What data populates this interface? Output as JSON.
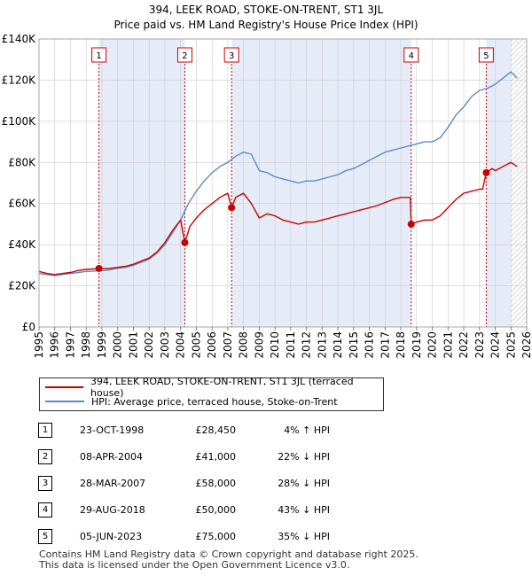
{
  "chart_data": {
    "type": "line",
    "title": "394, LEEK ROAD, STOKE-ON-TRENT, ST1 3JL",
    "subtitle": "Price paid vs. HM Land Registry's House Price Index (HPI)",
    "xlim": [
      1995,
      2026
    ],
    "ylim": [
      0,
      140000
    ],
    "x_ticks": [
      1995,
      1996,
      1997,
      1998,
      1999,
      2000,
      2001,
      2002,
      2003,
      2004,
      2005,
      2006,
      2007,
      2008,
      2009,
      2010,
      2011,
      2012,
      2013,
      2014,
      2015,
      2016,
      2017,
      2018,
      2019,
      2020,
      2021,
      2022,
      2023,
      2024,
      2025,
      2026
    ],
    "y_ticks": [
      {
        "value": 0,
        "label": "£0"
      },
      {
        "value": 20000,
        "label": "£20K"
      },
      {
        "value": 40000,
        "label": "£40K"
      },
      {
        "value": 60000,
        "label": "£60K"
      },
      {
        "value": 80000,
        "label": "£80K"
      },
      {
        "value": 100000,
        "label": "£100K"
      },
      {
        "value": 120000,
        "label": "£120K"
      },
      {
        "value": 140000,
        "label": "£140K"
      }
    ],
    "hatch_from": 2025.0,
    "colors": {
      "price_paid": "#cc0000",
      "hpi": "#5b8ac6",
      "shade": "#e6ecf7",
      "grid": "#cccccc",
      "vline": "#cc0000"
    },
    "series": [
      {
        "name": "394, LEEK ROAD, STOKE-ON-TRENT, ST1 3JL (terraced house)",
        "key": "price_paid",
        "x": [
          1995.0,
          1995.5,
          1996.0,
          1996.5,
          1997.0,
          1997.5,
          1998.0,
          1998.5,
          1998.81,
          1999.0,
          1999.5,
          2000.0,
          2000.5,
          2001.0,
          2001.5,
          2002.0,
          2002.5,
          2003.0,
          2003.5,
          2004.0,
          2004.27,
          2004.6,
          2005.0,
          2005.5,
          2006.0,
          2006.5,
          2007.0,
          2007.24,
          2007.5,
          2008.0,
          2008.5,
          2009.0,
          2009.5,
          2010.0,
          2010.5,
          2011.0,
          2011.5,
          2012.0,
          2012.5,
          2013.0,
          2013.5,
          2014.0,
          2014.5,
          2015.0,
          2015.5,
          2016.0,
          2016.5,
          2017.0,
          2017.5,
          2018.0,
          2018.6,
          2018.66,
          2019.0,
          2019.5,
          2020.0,
          2020.5,
          2021.0,
          2021.5,
          2022.0,
          2022.5,
          2023.0,
          2023.2,
          2023.43,
          2023.8,
          2024.0,
          2024.5,
          2025.0,
          2025.4
        ],
        "values": [
          27000,
          26000,
          25500,
          26000,
          26500,
          27500,
          28000,
          28200,
          28450,
          28300,
          28500,
          29000,
          29500,
          30500,
          32000,
          33500,
          36500,
          41000,
          47000,
          52000,
          41000,
          49000,
          53000,
          57000,
          60000,
          63000,
          65000,
          58000,
          63000,
          65000,
          60000,
          53000,
          55000,
          54000,
          52000,
          51000,
          50000,
          51000,
          51000,
          52000,
          53000,
          54000,
          55000,
          56000,
          57000,
          58000,
          59000,
          60500,
          62000,
          63000,
          63000,
          50000,
          51000,
          52000,
          52000,
          54000,
          58000,
          62000,
          65000,
          66000,
          67000,
          67000,
          75000,
          77000,
          76000,
          78000,
          80000,
          78000
        ]
      },
      {
        "name": "HPI: Average price, terraced house, Stoke-on-Trent",
        "key": "hpi",
        "x": [
          1995.0,
          1995.5,
          1996.0,
          1996.5,
          1997.0,
          1997.5,
          1998.0,
          1998.5,
          1999.0,
          1999.5,
          2000.0,
          2000.5,
          2001.0,
          2001.5,
          2002.0,
          2002.5,
          2003.0,
          2003.5,
          2004.0,
          2004.5,
          2005.0,
          2005.5,
          2006.0,
          2006.5,
          2007.0,
          2007.5,
          2008.0,
          2008.5,
          2009.0,
          2009.5,
          2010.0,
          2010.5,
          2011.0,
          2011.5,
          2012.0,
          2012.5,
          2013.0,
          2013.5,
          2014.0,
          2014.5,
          2015.0,
          2015.5,
          2016.0,
          2016.5,
          2017.0,
          2017.5,
          2018.0,
          2018.5,
          2019.0,
          2019.5,
          2020.0,
          2020.5,
          2021.0,
          2021.5,
          2022.0,
          2022.5,
          2023.0,
          2023.5,
          2024.0,
          2024.5,
          2025.0,
          2025.4
        ],
        "values": [
          26000,
          25500,
          25000,
          25500,
          26000,
          26500,
          27000,
          27200,
          27400,
          27800,
          28500,
          29000,
          30000,
          31500,
          33000,
          36000,
          40000,
          46000,
          52000,
          60000,
          66000,
          71000,
          75000,
          78000,
          80000,
          83000,
          85000,
          84000,
          76000,
          75000,
          73000,
          72000,
          71000,
          70000,
          71000,
          71000,
          72000,
          73000,
          74000,
          76000,
          77000,
          79000,
          81000,
          83000,
          85000,
          86000,
          87000,
          88000,
          89000,
          90000,
          90000,
          92000,
          97000,
          103000,
          107000,
          112000,
          115000,
          116000,
          118000,
          121000,
          124000,
          121000
        ]
      }
    ],
    "markers": [
      {
        "num": "1",
        "x": 1998.81,
        "value": 28450
      },
      {
        "num": "2",
        "x": 2004.27,
        "value": 41000
      },
      {
        "num": "3",
        "x": 2007.24,
        "value": 58000
      },
      {
        "num": "4",
        "x": 2018.66,
        "value": 50000
      },
      {
        "num": "5",
        "x": 2023.43,
        "value": 75000
      }
    ],
    "shade_ranges": [
      [
        1998.81,
        2004.27
      ],
      [
        2007.24,
        2018.66
      ],
      [
        2023.43,
        2025.0
      ]
    ]
  },
  "legend": [
    {
      "label": "394, LEEK ROAD, STOKE-ON-TRENT, ST1 3JL (terraced house)",
      "color": "#cc0000"
    },
    {
      "label": "HPI: Average price, terraced house, Stoke-on-Trent",
      "color": "#5b8ac6"
    }
  ],
  "sales": [
    {
      "num": "1",
      "date": "23-OCT-1998",
      "price": "£28,450",
      "pct": "4% ↑ HPI"
    },
    {
      "num": "2",
      "date": "08-APR-2004",
      "price": "£41,000",
      "pct": "22% ↓ HPI"
    },
    {
      "num": "3",
      "date": "28-MAR-2007",
      "price": "£58,000",
      "pct": "28% ↓ HPI"
    },
    {
      "num": "4",
      "date": "29-AUG-2018",
      "price": "£50,000",
      "pct": "43% ↓ HPI"
    },
    {
      "num": "5",
      "date": "05-JUN-2023",
      "price": "£75,000",
      "pct": "35% ↓ HPI"
    }
  ],
  "footer": {
    "line1": "Contains HM Land Registry data © Crown copyright and database right 2025.",
    "line2": "This data is licensed under the Open Government Licence v3.0."
  }
}
